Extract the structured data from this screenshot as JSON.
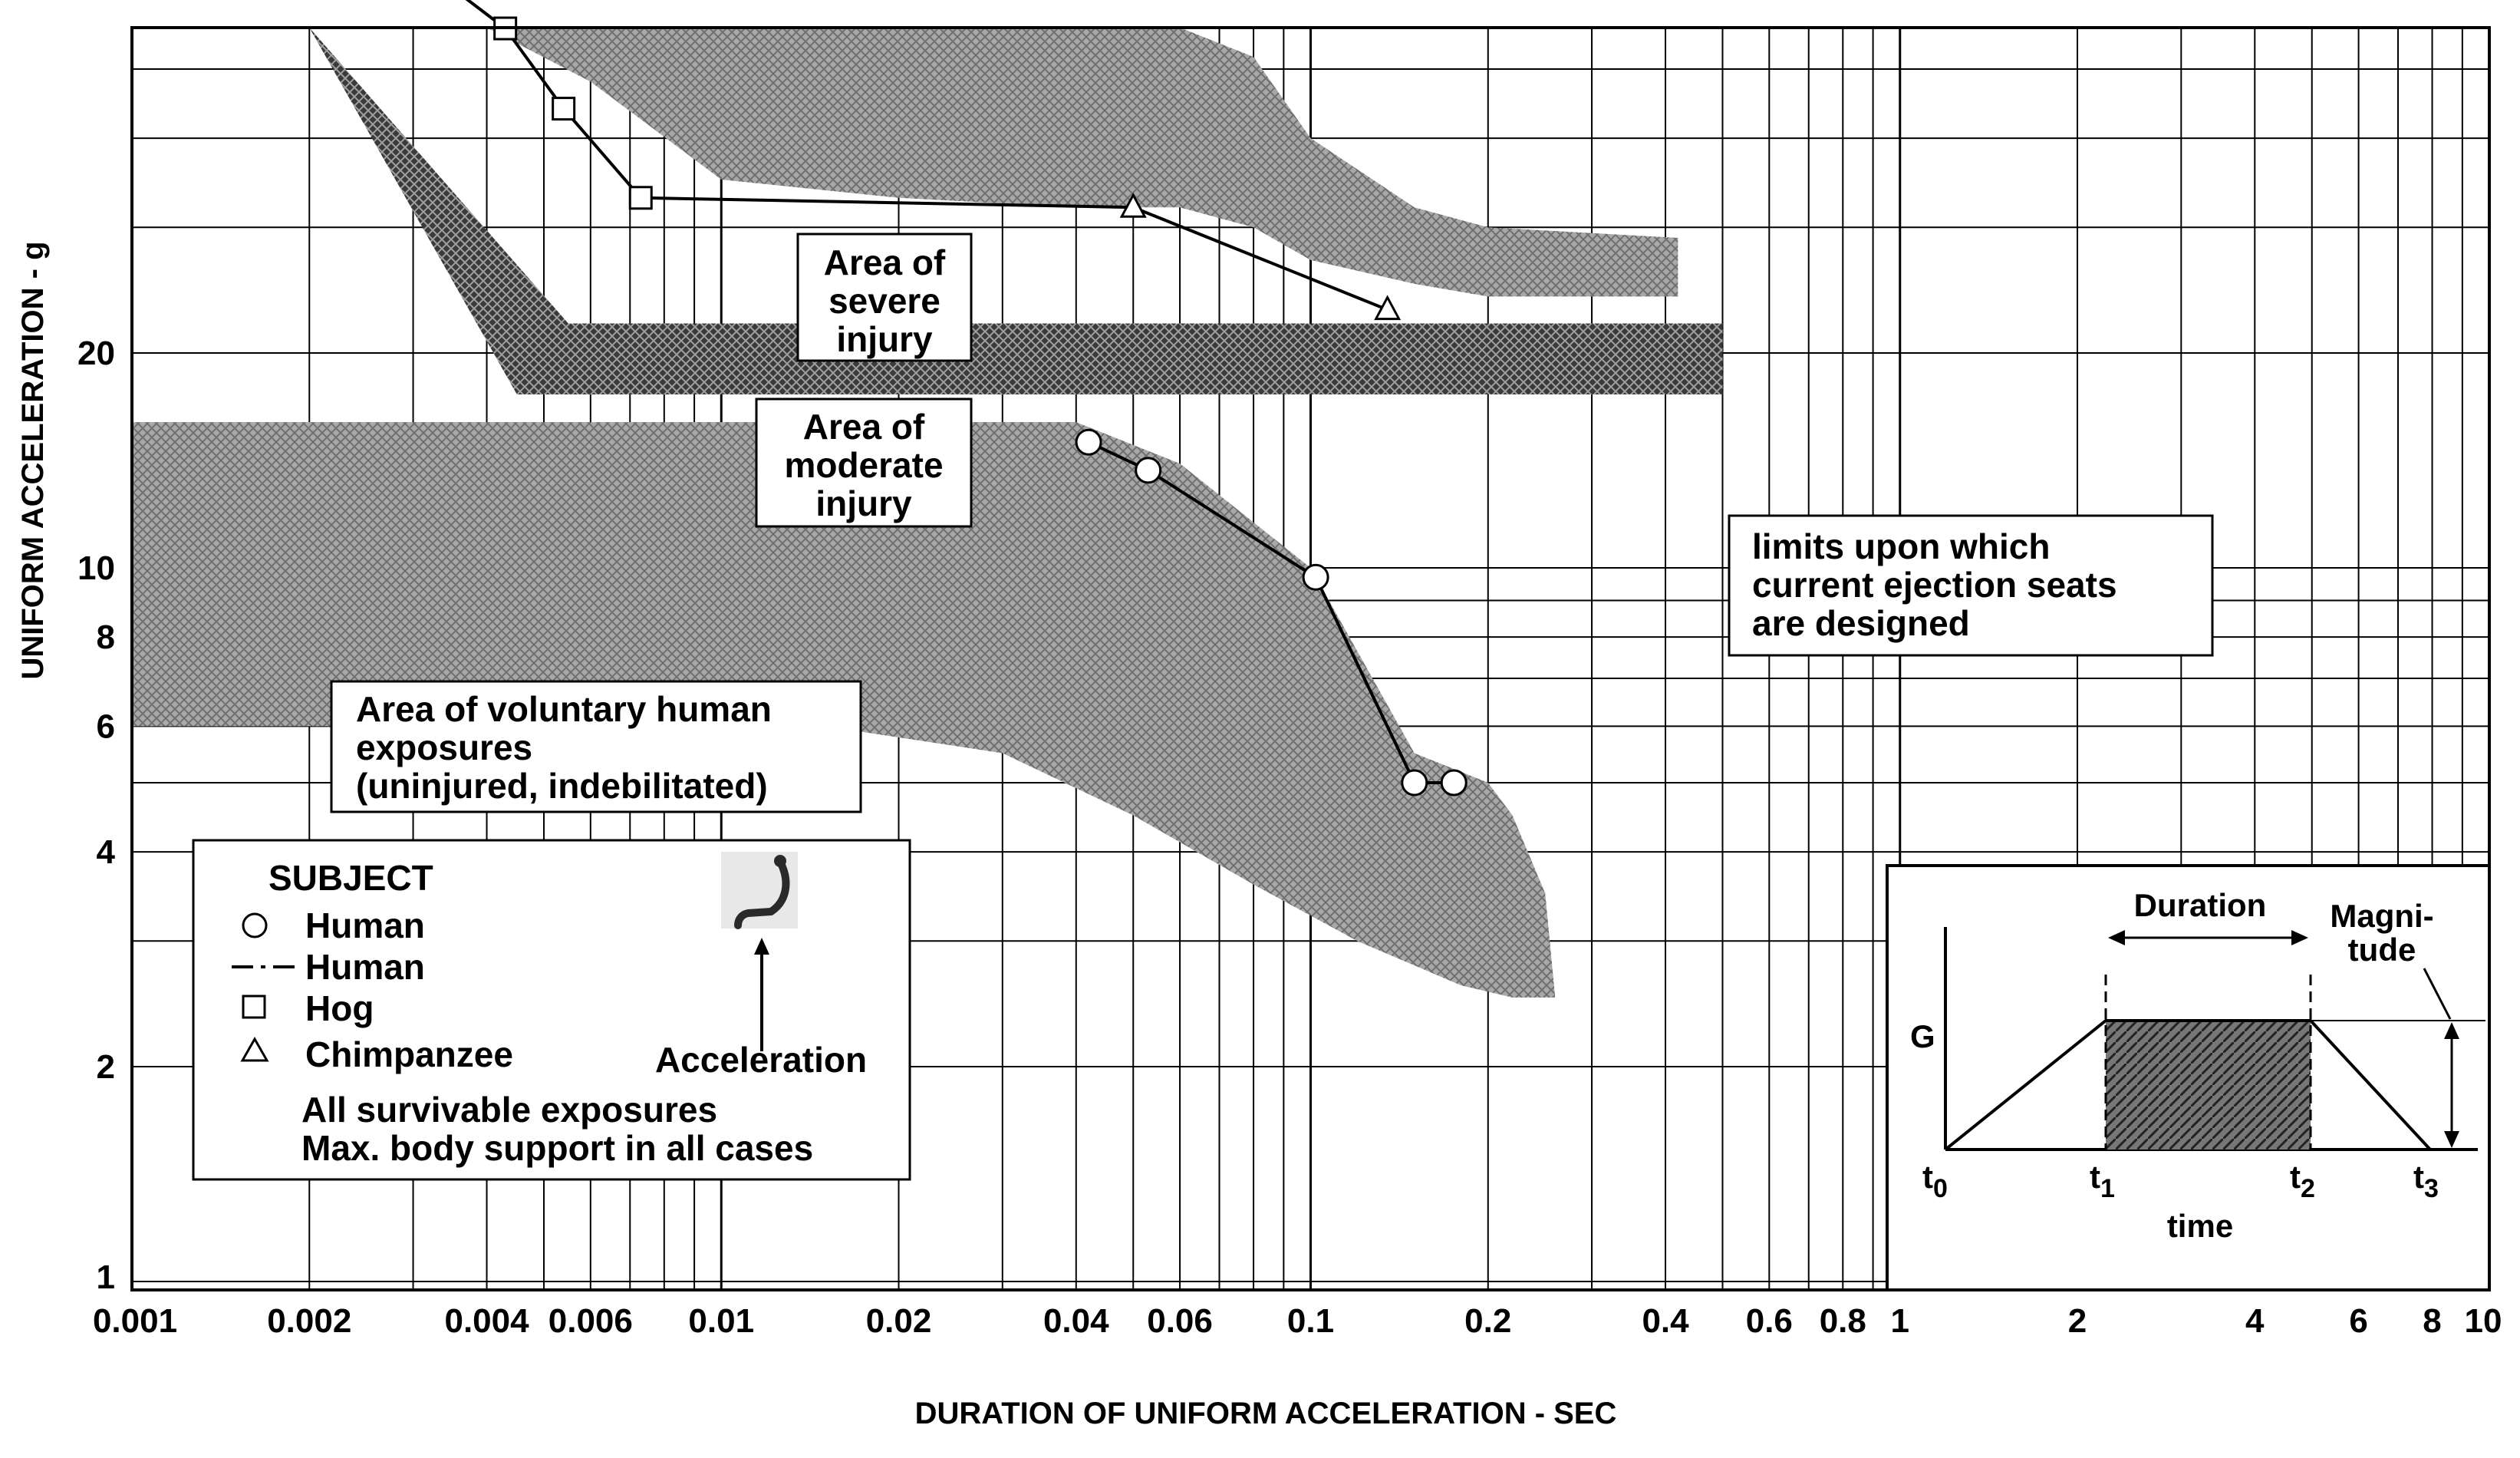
{
  "chart_data": {
    "type": "line",
    "xlabel": "DURATION OF UNIFORM ACCELERATION - SEC",
    "ylabel": "UNIFORM ACCELERATION  - g",
    "x_scale": "log",
    "y_scale": "log",
    "xlim": [
      0.001,
      10
    ],
    "ylim": [
      1,
      200
    ],
    "grid": true,
    "x_tick_labels": [
      "0.001",
      "0.002",
      "0.004",
      "0.006",
      "0.01",
      "0.02",
      "0.04",
      "0.06",
      "0.1",
      "0.2",
      "0.4",
      "0.6",
      "0.8",
      "1",
      "2",
      "4",
      "6",
      "8",
      "10"
    ],
    "x_ticks": [
      0.001,
      0.002,
      0.004,
      0.006,
      0.01,
      0.02,
      0.04,
      0.06,
      0.1,
      0.2,
      0.4,
      0.6,
      0.8,
      1,
      2,
      4,
      6,
      8,
      10
    ],
    "y_tick_labels": [
      "1",
      "2",
      "4",
      "6",
      "8",
      "10",
      "20"
    ],
    "y_ticks": [
      1,
      2,
      4,
      6,
      8,
      10,
      20
    ],
    "series": [
      {
        "name": "Hog",
        "marker": "square",
        "x": [
          0.0021,
          0.0031,
          0.0043,
          0.0054,
          0.0073
        ],
        "y": [
          80,
          70,
          57,
          44,
          33
        ]
      },
      {
        "name": "Chimpanzee",
        "marker": "triangle",
        "x": [
          0.05,
          0.135
        ],
        "y": [
          32,
          23
        ]
      },
      {
        "name": "Human",
        "marker": "circle",
        "x": [
          0.042,
          0.053,
          0.102,
          0.15,
          0.175
        ],
        "y": [
          15,
          13.7,
          9.7,
          5,
          5
        ]
      }
    ],
    "connector_segments": [
      {
        "x": [
          0.0073,
          0.05
        ],
        "y": [
          33,
          32
        ]
      }
    ],
    "regions": [
      {
        "label": "Area of severe injury",
        "upper": {
          "x": [
            0.0021,
            0.003,
            0.004,
            0.006,
            0.01,
            0.02,
            0.04,
            0.06,
            0.08,
            0.1,
            0.15,
            0.2,
            0.42
          ],
          "y": [
            200,
            200,
            195,
            140,
            120,
            95,
            80,
            70,
            52,
            40,
            32,
            30,
            29
          ]
        },
        "lower": {
          "x": [
            0.0021,
            0.003,
            0.004,
            0.006,
            0.01,
            0.02,
            0.04,
            0.06,
            0.08,
            0.1,
            0.15,
            0.2,
            0.42
          ],
          "y": [
            90,
            82,
            66,
            48,
            35,
            33,
            32,
            32,
            30,
            27,
            25,
            24,
            24
          ]
        }
      },
      {
        "label": "limits upon which current ejection seats are designed",
        "upper": {
          "x": [
            0.002,
            0.0055,
            0.5
          ],
          "y": [
            110,
            22,
            22
          ]
        },
        "lower": {
          "x": [
            0.002,
            0.0045,
            0.5
          ],
          "y": [
            65,
            17.5,
            17.5
          ]
        }
      },
      {
        "label": "Area of voluntary human exposures (uninjured, indebilitated)",
        "upper": {
          "x": [
            0.001,
            0.04,
            0.06,
            0.1,
            0.15,
            0.2,
            0.22,
            0.25
          ],
          "y": [
            16,
            16,
            14,
            10,
            5.5,
            5,
            4.5,
            3.5
          ]
        },
        "lower": {
          "x": [
            0.001,
            0.015,
            0.03,
            0.05,
            0.08,
            0.12,
            0.18,
            0.22,
            0.26
          ],
          "y": [
            6,
            6,
            5.5,
            4.5,
            3.6,
            3.0,
            2.6,
            2.5,
            2.5
          ]
        }
      }
    ],
    "annotations": {
      "severe": [
        "Area of",
        "severe",
        "injury"
      ],
      "moderate": [
        "Area of",
        "moderate",
        "injury"
      ],
      "ejection": [
        "limits upon which",
        "current ejection seats",
        "are designed"
      ],
      "voluntary": [
        "Area of voluntary human",
        "exposures",
        "(uninjured, indebilitated)"
      ]
    },
    "legend": {
      "title": "SUBJECT",
      "entries": [
        {
          "marker": "circle",
          "label": "Human"
        },
        {
          "marker": "dash-dot",
          "label": "Human"
        },
        {
          "marker": "square",
          "label": "Hog"
        },
        {
          "marker": "triangle",
          "label": "Chimpanzee"
        }
      ],
      "notes": [
        "All survivable exposures",
        "Max. body support in all cases"
      ],
      "acceleration_label": "Acceleration"
    },
    "inset": {
      "g_label": "G",
      "duration_label": "Duration",
      "magnitude_label": [
        "Magni-",
        "tude"
      ],
      "time_label": "time",
      "t_labels": [
        "t",
        "t",
        "t",
        "t"
      ],
      "t_subscripts": [
        "0",
        "1",
        "2",
        "3"
      ]
    }
  }
}
